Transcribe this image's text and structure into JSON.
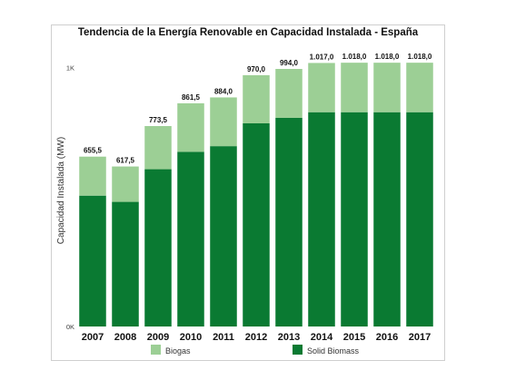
{
  "chart_data": {
    "type": "bar",
    "stacked": true,
    "title": "Tendencia de la Energía Renovable en Capacidad Instalada - España",
    "ylabel": "Capacidad Instalada (MW)",
    "xlabel": "",
    "ylim": [
      0,
      1050
    ],
    "yticks": [
      {
        "value": 0,
        "label": "0K"
      },
      {
        "value": 1000,
        "label": "1K"
      }
    ],
    "grid": false,
    "legend_position": "bottom",
    "categories": [
      "2007",
      "2008",
      "2009",
      "2010",
      "2011",
      "2012",
      "2013",
      "2014",
      "2015",
      "2016",
      "2017"
    ],
    "series": [
      {
        "name": "Solid Biomass",
        "color": "#0a7a32",
        "values": [
          505,
          481,
          607,
          674,
          696,
          784,
          805,
          827,
          827,
          827,
          827
        ]
      },
      {
        "name": "Biogas",
        "color": "#9ccf95",
        "values": [
          150.5,
          136.5,
          166.5,
          187.5,
          188,
          186,
          189,
          190,
          191,
          191,
          191
        ]
      }
    ],
    "totals": [
      "655,5",
      "617,5",
      "773,5",
      "861,5",
      "884,0",
      "970,0",
      "994,0",
      "1.017,0",
      "1.018,0",
      "1.018,0",
      "1.018,0"
    ],
    "legend": [
      "Biogas",
      "Solid Biomass"
    ]
  }
}
